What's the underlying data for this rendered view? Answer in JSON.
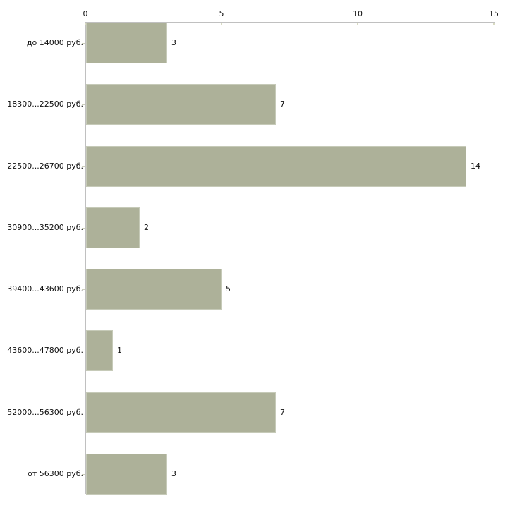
{
  "chart_data": {
    "type": "bar",
    "orientation": "horizontal",
    "title": "",
    "xlabel": "",
    "ylabel": "",
    "categories": [
      "до 14000 руб.",
      "18300...22500 руб.",
      "22500...26700 руб.",
      "30900...35200 руб.",
      "39400...43600 руб.",
      "43600...47800 руб.",
      "52000...56300 руб.",
      "от 56300 руб."
    ],
    "values": [
      3,
      7,
      14,
      2,
      5,
      1,
      7,
      3
    ],
    "value_labels": [
      "3",
      "7",
      "14",
      "2",
      "5",
      "1",
      "7",
      "3"
    ],
    "xlim": [
      0,
      15
    ],
    "xticks": [
      0,
      5,
      10,
      15
    ],
    "xtick_labels": [
      "0",
      "5",
      "10",
      "15"
    ],
    "axis_position": "top",
    "grid": false,
    "legend": false,
    "colors": {
      "bar_fill": "#adb199",
      "bar_border": "#c6cab8",
      "axis_line": "#c0c0c0",
      "xtick_mark": "#d8dac2",
      "ytick_mark": "#cccebc",
      "text": "#0f0f0f",
      "background": "#ffffff"
    }
  }
}
